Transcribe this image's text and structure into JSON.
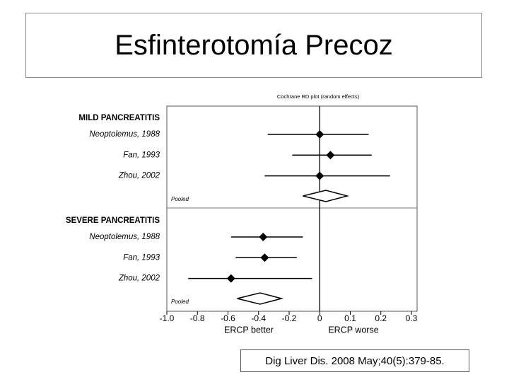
{
  "slide": {
    "title": "Esfinterotomía Precoz",
    "citation": "Dig Liver Dis. 2008 May;40(5):379-85."
  },
  "chart_data": {
    "type": "forest",
    "subtitle": "Cochrane RD plot (random effects)",
    "xlabel_left": "ERCP better",
    "xlabel_right": "ERCP worse",
    "xticks": [
      {
        "value": -1.0,
        "label": "-1.0"
      },
      -0.8,
      -0.6,
      -0.4,
      -0.2,
      0,
      0.1,
      0.2,
      0.3
    ],
    "xlim": [
      -1.0,
      0.3
    ],
    "groups": [
      {
        "name": "MILD PANCREATITIS",
        "studies": [
          {
            "label": "Neoptolemus, 1988",
            "estimate": 0.0,
            "lower": -0.34,
            "upper": 0.16
          },
          {
            "label": "Fan, 1993",
            "estimate": 0.035,
            "lower": -0.18,
            "upper": 0.17
          },
          {
            "label": "Zhou, 2002",
            "estimate": 0.0,
            "lower": -0.36,
            "upper": 0.23
          }
        ],
        "pooled": {
          "label": "Pooled",
          "estimate": 0.02,
          "lower": -0.11,
          "upper": 0.09
        }
      },
      {
        "name": "SEVERE PANCREATITIS",
        "studies": [
          {
            "label": "Neoptolemus, 1988",
            "estimate": -0.37,
            "lower": -0.58,
            "upper": -0.11
          },
          {
            "label": "Fan, 1993",
            "estimate": -0.36,
            "lower": -0.55,
            "upper": -0.15
          },
          {
            "label": "Zhou, 2002",
            "estimate": -0.58,
            "lower": -0.86,
            "upper": -0.05
          }
        ],
        "pooled": {
          "label": "Pooled",
          "estimate": -0.39,
          "lower": -0.54,
          "upper": -0.25
        }
      }
    ]
  }
}
